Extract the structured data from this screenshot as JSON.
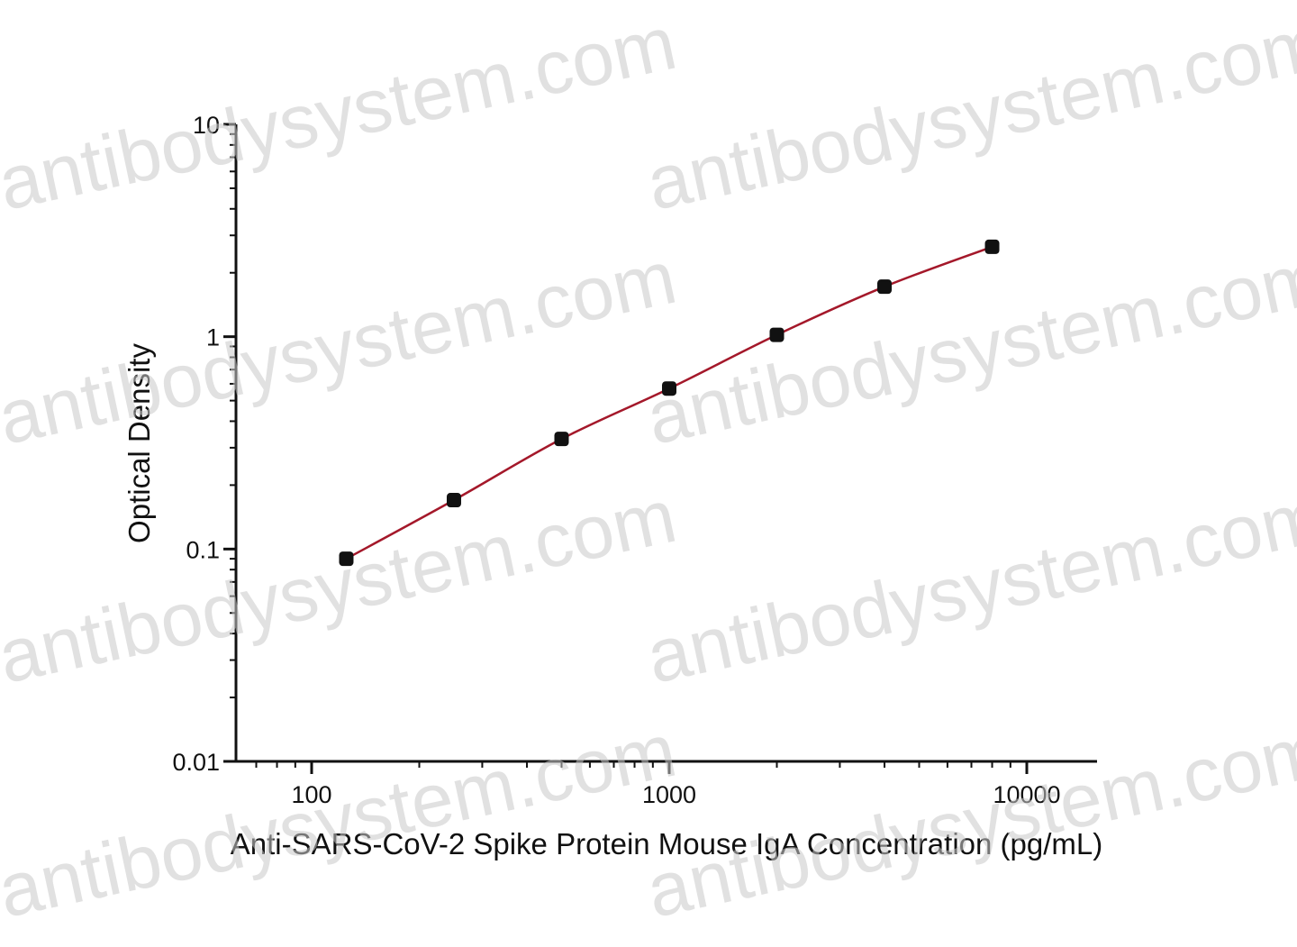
{
  "chart_data": {
    "type": "scatter",
    "xscale": "log",
    "yscale": "log",
    "xlim": [
      60,
      16000
    ],
    "ylim": [
      0.01,
      10
    ],
    "xticks": [
      {
        "value": 100,
        "label": "100"
      },
      {
        "value": 1000,
        "label": "1000"
      },
      {
        "value": 10000,
        "label": "10000"
      }
    ],
    "yticks": [
      {
        "value": 0.01,
        "label": "0.01"
      },
      {
        "value": 0.1,
        "label": "0.1"
      },
      {
        "value": 1,
        "label": "1"
      },
      {
        "value": 10,
        "label": "10"
      }
    ],
    "xlabel": "Anti-SARS-CoV-2 Spike Protein Mouse IgA Concentration (pg/mL)",
    "ylabel": "Optical Density",
    "grid": false,
    "series": [
      {
        "x": [
          125,
          250,
          500,
          1000,
          2000,
          4000,
          8000
        ],
        "y": [
          0.09,
          0.17,
          0.33,
          0.57,
          1.02,
          1.72,
          2.65
        ],
        "marker_color": "#111111",
        "line_color": "#a4182a",
        "fit_line": true
      }
    ],
    "watermark": "antibodysystem.com"
  }
}
